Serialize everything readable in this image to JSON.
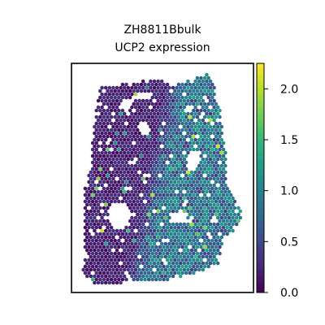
{
  "chart_data": {
    "type": "scatter",
    "subtype": "spatial-hexbin-expression",
    "title": "ZH8811Bbulk",
    "subtitle": "UCP2 expression",
    "xlabel": "",
    "ylabel": "",
    "axis_ticks_visible": false,
    "grid": false,
    "colormap": "viridis",
    "colorbar": {
      "min": 0.0,
      "max": 2.25,
      "ticks": [
        0.0,
        0.5,
        1.0,
        1.5,
        2.0
      ],
      "tick_labels": [
        "0.0",
        "0.5",
        "1.0",
        "1.5",
        "2.0"
      ],
      "placement": "right"
    },
    "expression_summary": {
      "background_level": 0.2,
      "right_region_level": 0.75,
      "max_observed": 2.1
    },
    "holes": [
      "upper-center",
      "left-middle",
      "right-middle",
      "lower-center"
    ]
  }
}
